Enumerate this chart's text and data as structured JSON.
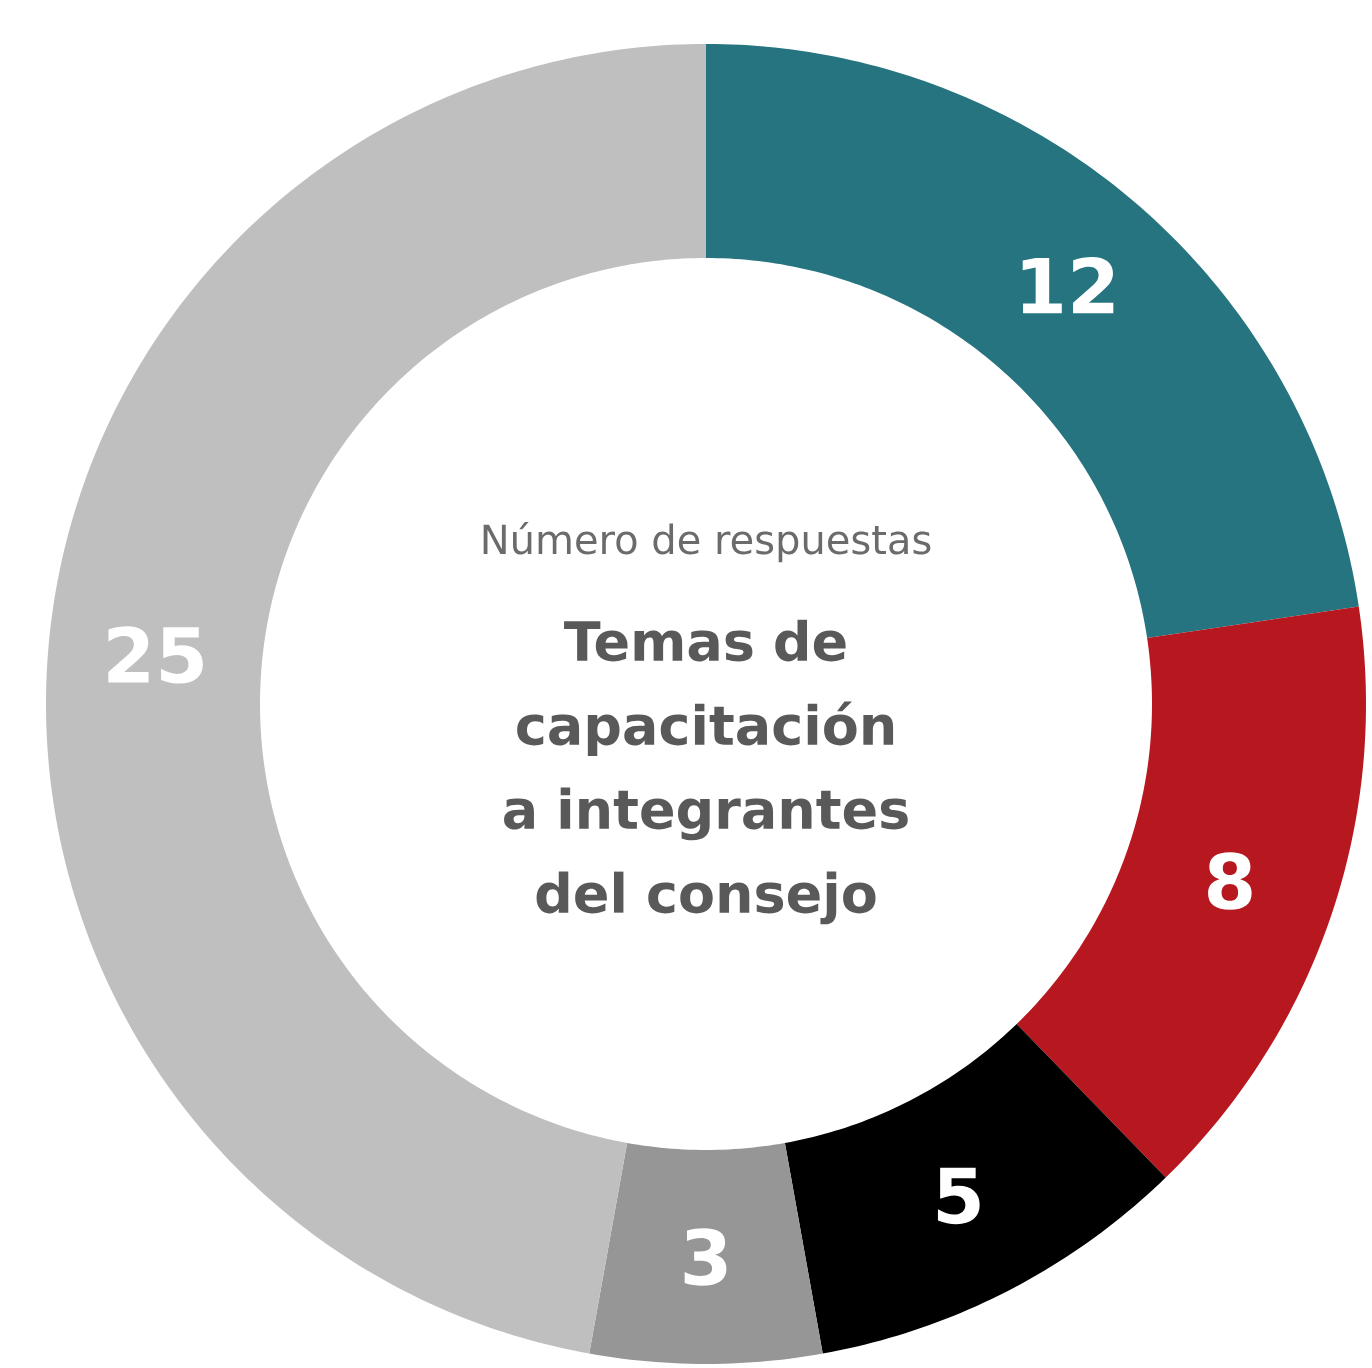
{
  "chart_data": {
    "type": "donut",
    "title": "Temas de capacitación a integrantes del consejo",
    "subtitle": "Número de respuestas",
    "categories": [
      null,
      null,
      null,
      null,
      null
    ],
    "values": [
      12,
      8,
      5,
      3,
      25
    ],
    "colors": [
      "#25747f",
      "#b7171f",
      "#000000",
      "#969696",
      "#bfbfbf"
    ],
    "data_labels": true
  }
}
